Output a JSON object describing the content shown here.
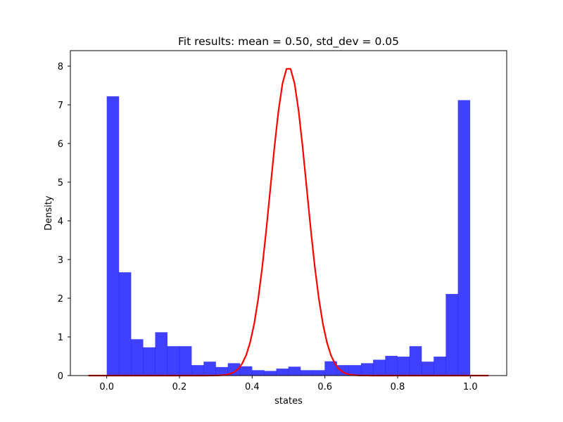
{
  "chart_data": {
    "type": "bar",
    "title": "Fit results: mean = 0.50, std_dev = 0.05",
    "xlabel": "states",
    "ylabel": "Density",
    "xlim": [
      -0.1,
      1.1
    ],
    "ylim": [
      0,
      8.4
    ],
    "xticks": [
      "0.0",
      "0.2",
      "0.4",
      "0.6",
      "0.8",
      "1.0"
    ],
    "xtick_values": [
      0.0,
      0.2,
      0.4,
      0.6,
      0.8,
      1.0
    ],
    "yticks": [
      "0",
      "1",
      "2",
      "3",
      "4",
      "5",
      "6",
      "7",
      "8"
    ],
    "ytick_values": [
      0,
      1,
      2,
      3,
      4,
      5,
      6,
      7,
      8
    ],
    "grid": false,
    "histogram": {
      "color": "#0000ff",
      "alpha": 0.75,
      "bin_start": 0.0,
      "bin_width": 0.0333,
      "values": [
        7.22,
        2.67,
        0.94,
        0.73,
        1.12,
        0.76,
        0.76,
        0.27,
        0.36,
        0.22,
        0.32,
        0.24,
        0.14,
        0.12,
        0.18,
        0.23,
        0.14,
        0.14,
        0.37,
        0.27,
        0.27,
        0.32,
        0.41,
        0.51,
        0.49,
        0.76,
        0.36,
        0.49,
        2.11,
        7.12
      ]
    },
    "fit_curve": {
      "color": "#ff0000",
      "mean": 0.5,
      "std_dev": 0.05,
      "x_range": [
        -0.05,
        1.05
      ]
    }
  }
}
